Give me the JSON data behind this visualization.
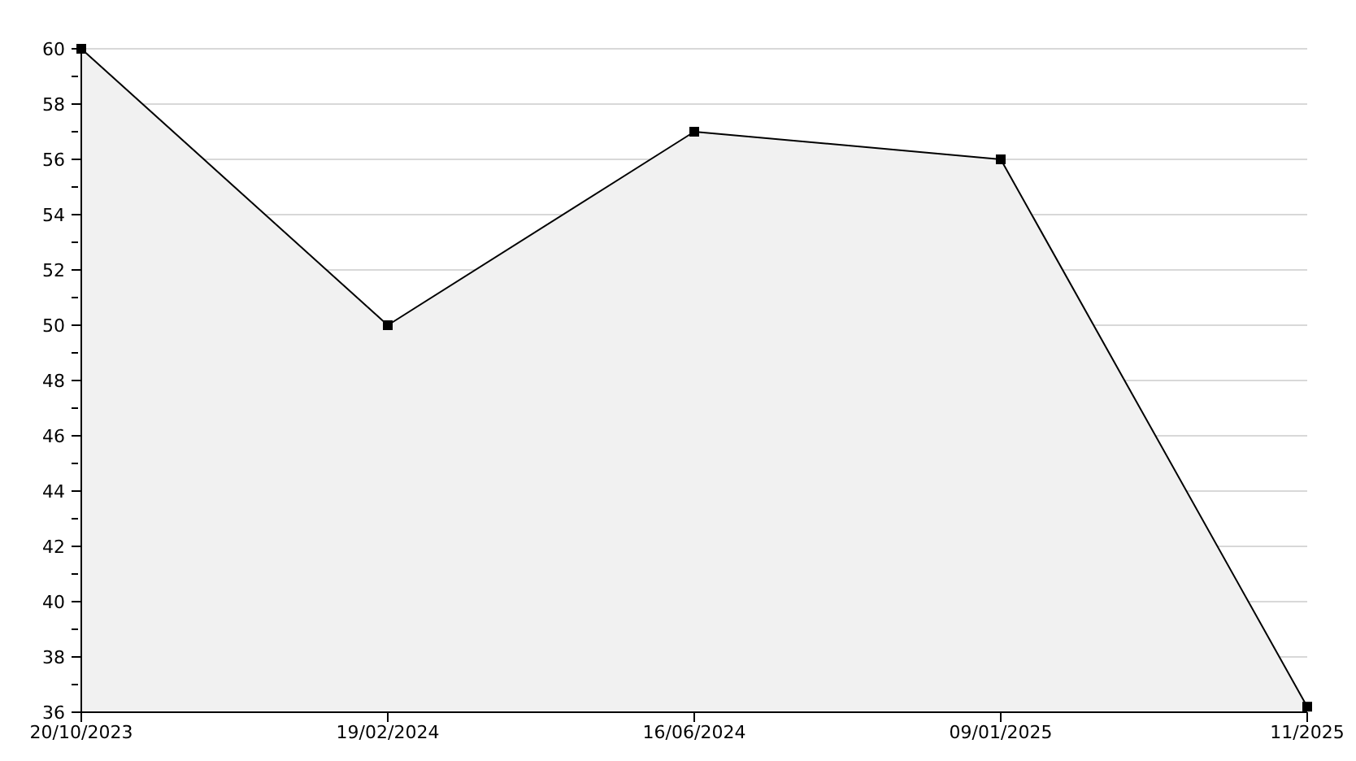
{
  "chart_data": {
    "type": "area",
    "categories": [
      "20/10/2023",
      "19/02/2024",
      "16/06/2024",
      "09/01/2025",
      "11/2025"
    ],
    "values": [
      60,
      50,
      57,
      56,
      36.2
    ],
    "color": "#000000",
    "ylim": [
      36,
      60
    ],
    "yticks": [
      36,
      {
        "value": 37,
        "label": null
      },
      38,
      {
        "value": 39,
        "label": null
      },
      40,
      {
        "value": 41,
        "label": null
      },
      42,
      {
        "value": 43,
        "label": null
      },
      44,
      {
        "value": 45,
        "label": null
      },
      46,
      {
        "value": 47,
        "label": null
      },
      48,
      {
        "value": 49,
        "label": null
      },
      50,
      {
        "value": 51,
        "label": null
      },
      52,
      {
        "value": 53,
        "label": null
      },
      54,
      {
        "value": 55,
        "label": null
      },
      56,
      {
        "value": 57,
        "label": null
      },
      58,
      {
        "value": 59,
        "label": null
      },
      60
    ],
    "grid": "y",
    "marker": "square",
    "line_style": "solid"
  }
}
